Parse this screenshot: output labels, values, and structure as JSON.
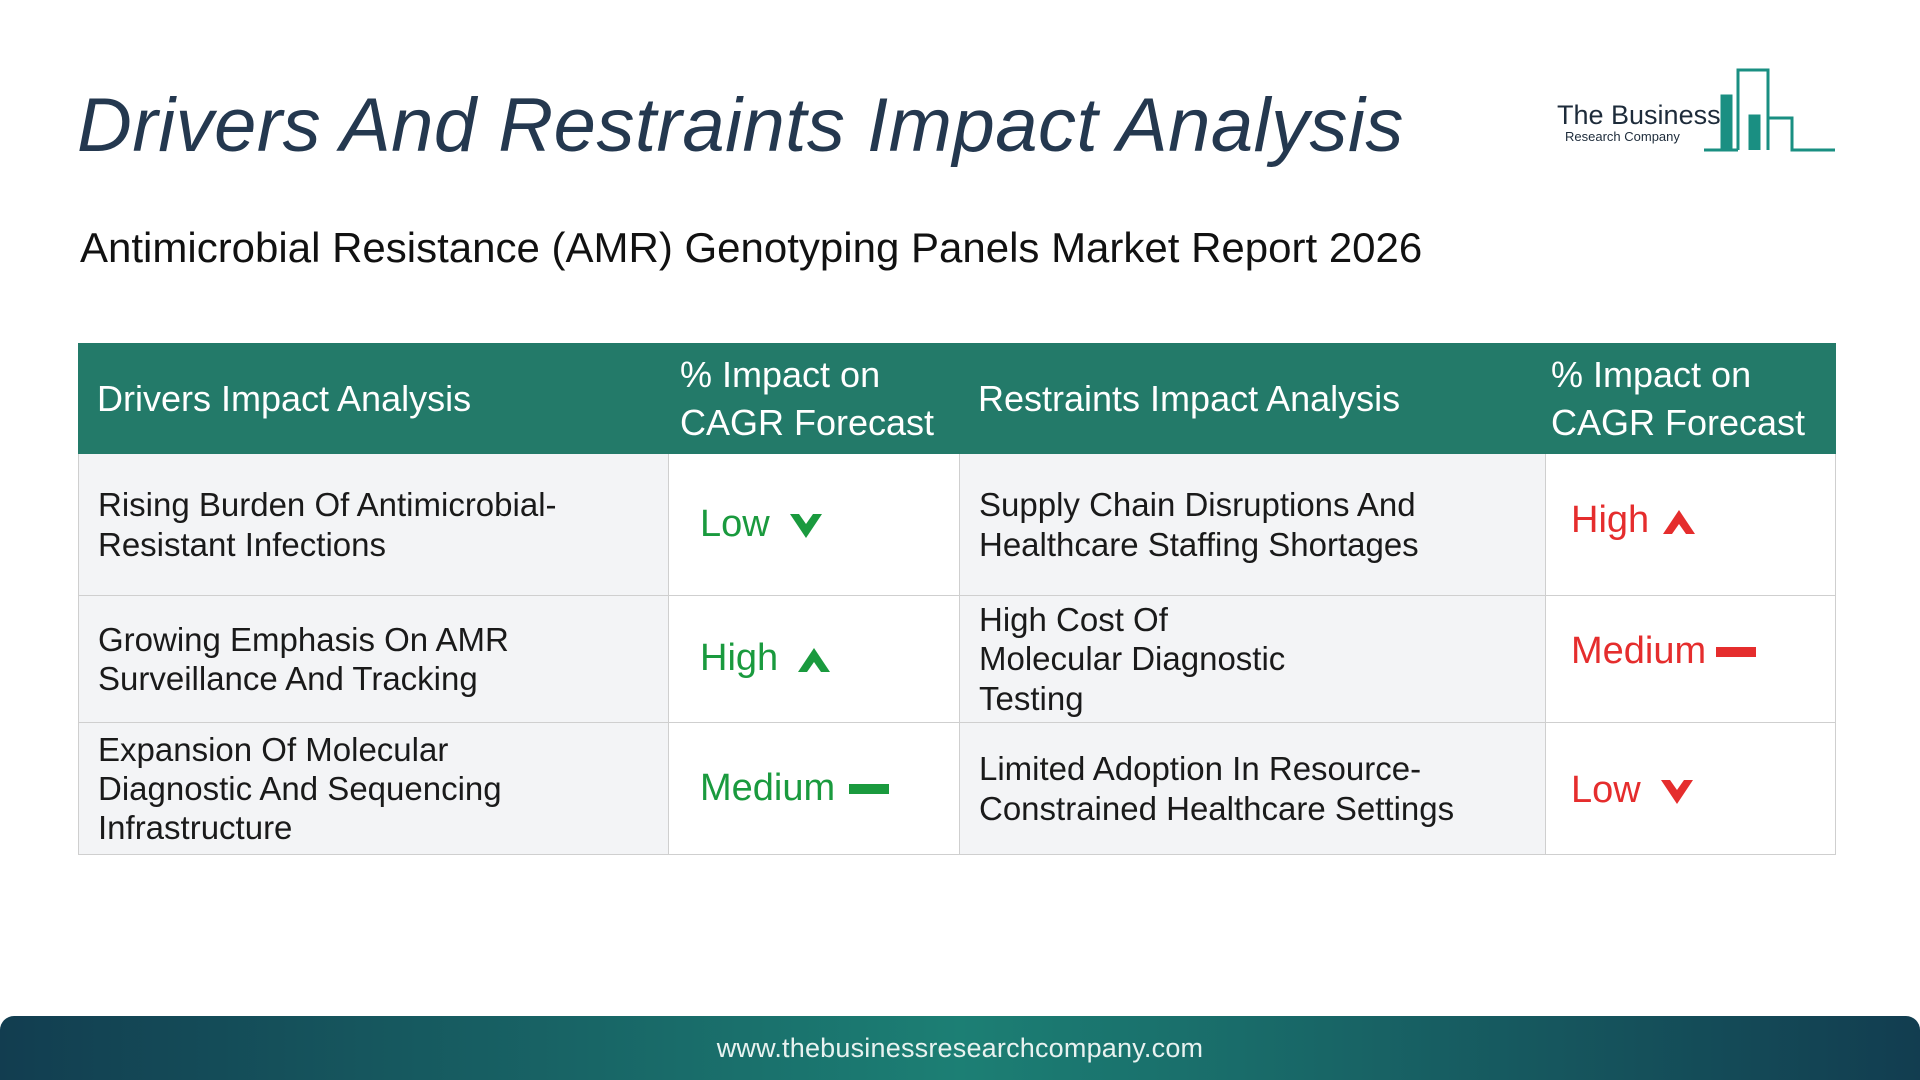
{
  "page": {
    "title": "Drivers And Restraints Impact Analysis",
    "subtitle": "Antimicrobial Resistance (AMR) Genotyping Panels Market Report 2026"
  },
  "logo": {
    "name": "The Business",
    "sub": "Research Company",
    "color": "#1a8f82"
  },
  "table": {
    "headers": {
      "drivers": "Drivers Impact Analysis",
      "drivers_impact": "% Impact on CAGR Forecast",
      "restraints": "Restraints Impact Analysis",
      "restraints_impact": "% Impact on CAGR Forecast"
    },
    "header_color": "#237a69",
    "rows": [
      {
        "driver": "Rising Burden Of Antimicrobial-Resistant Infections",
        "driver_impact": "Low",
        "driver_icon": "arrow-down-icon",
        "restraint": "Supply Chain Disruptions And Healthcare Staffing Shortages",
        "restraint_impact": "High",
        "restraint_icon": "arrow-up-icon"
      },
      {
        "driver": "Growing Emphasis On AMR Surveillance And Tracking",
        "driver_impact": "High",
        "driver_icon": "arrow-up-icon",
        "restraint": "High Cost Of Molecular Diagnostic Testing",
        "restraint_impact": "Medium",
        "restraint_icon": "dash-icon"
      },
      {
        "driver": "Expansion Of Molecular Diagnostic And Sequencing Infrastructure",
        "driver_impact": "Medium",
        "driver_icon": "dash-icon",
        "restraint": "Limited Adoption In Resource-Constrained Healthcare Settings",
        "restraint_impact": "Low",
        "restraint_icon": "arrow-down-icon"
      }
    ],
    "driver_color": "#1a9a3e",
    "restraint_color": "#e52d2d"
  },
  "footer": {
    "url": "www.thebusinessresearchcompany.com"
  }
}
